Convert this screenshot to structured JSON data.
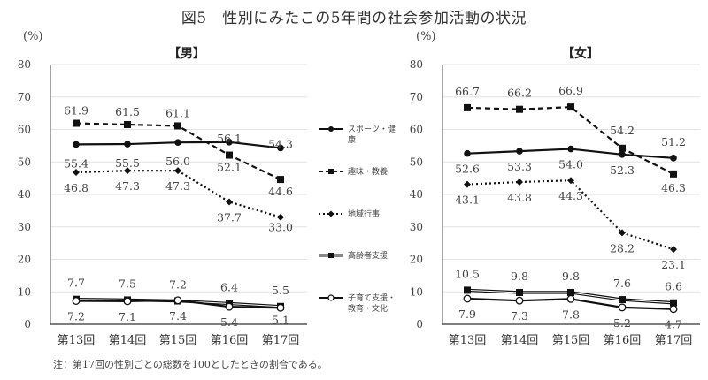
{
  "title": "図5　性別にみたこの5年間の社会参加活動の状況",
  "note": "注：第17回の性別ごとの総数を100としたときの割合である。",
  "legend": [
    {
      "key": "sports",
      "label": "スポーツ・健康"
    },
    {
      "key": "hobby",
      "label": "趣味・教養"
    },
    {
      "key": "community",
      "label": "地域行事"
    },
    {
      "key": "elderly",
      "label": "高齢者支援"
    },
    {
      "key": "childcare",
      "label": "子育て支援・教育・文化"
    }
  ],
  "chart_data": [
    {
      "type": "line",
      "title": "【男】",
      "ylabel": "(%)",
      "ylim": [
        0,
        80
      ],
      "yticks": [
        "0",
        "10",
        "20",
        "30",
        "40",
        "50",
        "60",
        "70",
        "80"
      ],
      "grid": true,
      "categories": [
        "第13回",
        "第14回",
        "第15回",
        "第16回",
        "第17回"
      ],
      "series": [
        {
          "name": "スポーツ・健康",
          "values": [
            55.4,
            55.5,
            56.0,
            56.1,
            54.3
          ],
          "labels": [
            "55.4",
            "55.5",
            "56.0",
            "56.1",
            "54.3"
          ]
        },
        {
          "name": "趣味・教養",
          "values": [
            61.9,
            61.5,
            61.1,
            52.1,
            44.6
          ],
          "labels": [
            "61.9",
            "61.5",
            "61.1",
            "52.1",
            "44.6"
          ]
        },
        {
          "name": "地域行事",
          "values": [
            46.8,
            47.3,
            47.3,
            37.7,
            33.0
          ],
          "labels": [
            "46.8",
            "47.3",
            "47.3",
            "37.7",
            "33.0"
          ]
        },
        {
          "name": "高齢者支援",
          "values": [
            7.7,
            7.5,
            7.2,
            6.4,
            5.5
          ],
          "labels": [
            "7.7",
            "7.5",
            "7.2",
            "6.4",
            "5.5"
          ]
        },
        {
          "name": "子育て支援・教育・文化",
          "values": [
            7.2,
            7.1,
            7.4,
            5.4,
            5.1
          ],
          "labels": [
            "7.2",
            "7.1",
            "7.4",
            "5.4",
            "5.1"
          ]
        }
      ]
    },
    {
      "type": "line",
      "title": "【女】",
      "ylabel": "(%)",
      "ylim": [
        0,
        80
      ],
      "yticks": [
        "0",
        "10",
        "20",
        "30",
        "40",
        "50",
        "60",
        "70",
        "80"
      ],
      "grid": true,
      "categories": [
        "第13回",
        "第14回",
        "第15回",
        "第16回",
        "第17回"
      ],
      "series": [
        {
          "name": "スポーツ・健康",
          "values": [
            52.6,
            53.3,
            54.0,
            52.3,
            51.2
          ],
          "labels": [
            "52.6",
            "53.3",
            "54.0",
            "52.3",
            "51.2"
          ]
        },
        {
          "name": "趣味・教養",
          "values": [
            66.7,
            66.2,
            66.9,
            54.2,
            46.3
          ],
          "labels": [
            "66.7",
            "66.2",
            "66.9",
            "54.2",
            "46.3"
          ]
        },
        {
          "name": "地域行事",
          "values": [
            43.1,
            43.8,
            44.3,
            28.2,
            23.1
          ],
          "labels": [
            "43.1",
            "43.8",
            "44.3",
            "28.2",
            "23.1"
          ]
        },
        {
          "name": "高齢者支援",
          "values": [
            10.5,
            9.8,
            9.8,
            7.6,
            6.6
          ],
          "labels": [
            "10.5",
            "9.8",
            "9.8",
            "7.6",
            "6.6"
          ]
        },
        {
          "name": "子育て支援・教育・文化",
          "values": [
            7.9,
            7.3,
            7.8,
            5.2,
            4.7
          ],
          "labels": [
            "7.9",
            "7.3",
            "7.8",
            "5.2",
            "4.7"
          ]
        }
      ]
    }
  ]
}
